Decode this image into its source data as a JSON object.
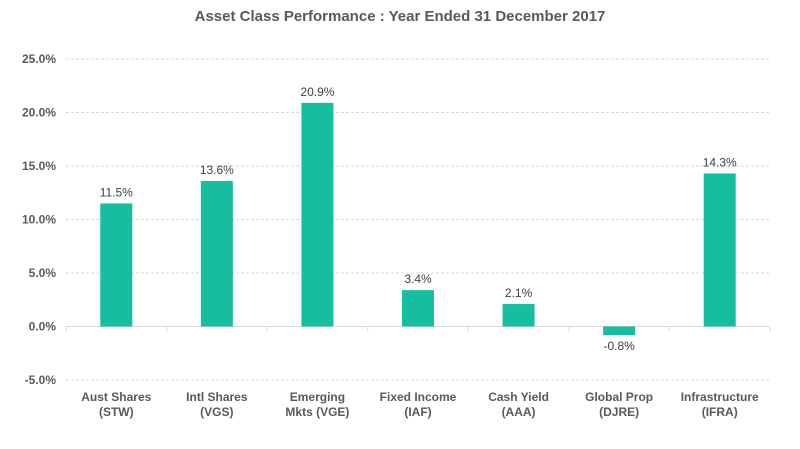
{
  "chart_data": {
    "type": "bar",
    "title": "Asset Class Performance : Year Ended 31 December 2017",
    "categories": [
      [
        "Aust Shares",
        "(STW)"
      ],
      [
        "Intl Shares",
        "(VGS)"
      ],
      [
        "Emerging",
        "Mkts (VGE)"
      ],
      [
        "Fixed Income",
        "(IAF)"
      ],
      [
        "Cash Yield",
        "(AAA)"
      ],
      [
        "Global Prop",
        "(DJRE)"
      ],
      [
        "Infrastructure",
        "(IFRA)"
      ]
    ],
    "values": [
      11.5,
      13.6,
      20.9,
      3.4,
      2.1,
      -0.8,
      14.3
    ],
    "data_labels": [
      "11.5%",
      "13.6%",
      "20.9%",
      "3.4%",
      "2.1%",
      "-0.8%",
      "14.3%"
    ],
    "yticks": [
      -5,
      0,
      5,
      10,
      15,
      20,
      25
    ],
    "ytick_labels": [
      "-5.0%",
      "0.0%",
      "5.0%",
      "10.0%",
      "15.0%",
      "20.0%",
      "25.0%"
    ],
    "ylim": [
      -5,
      25
    ],
    "xlabel": "",
    "ylabel": "",
    "grid": true,
    "legend": "none",
    "bar_color": "#16be9f"
  }
}
